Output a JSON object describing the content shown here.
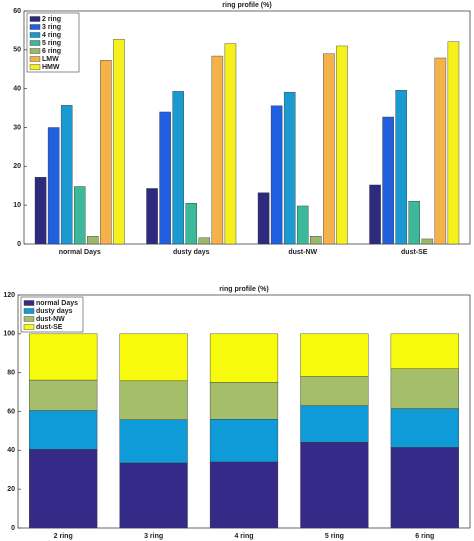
{
  "chart_data": [
    {
      "type": "bar",
      "title": "ring profile (%)",
      "categories": [
        "normal Days",
        "dusty days",
        "dust-NW",
        "dust-SE"
      ],
      "series": [
        {
          "name": "2 ring",
          "color": "#2e2a7e",
          "values": [
            17.2,
            14.3,
            13.2,
            15.2
          ]
        },
        {
          "name": "3 ring",
          "color": "#1f5fe0",
          "values": [
            30,
            34,
            35.6,
            32.7
          ]
        },
        {
          "name": "4 ring",
          "color": "#1a9ad0",
          "values": [
            35.7,
            39.3,
            39.1,
            39.6
          ]
        },
        {
          "name": "5 ring",
          "color": "#3cb89a",
          "values": [
            14.8,
            10.5,
            9.8,
            11
          ]
        },
        {
          "name": "6 ring",
          "color": "#9ab96a",
          "values": [
            2,
            1.6,
            2,
            1.3
          ]
        },
        {
          "name": "LMW",
          "color": "#f5b24a",
          "values": [
            47.3,
            48.4,
            49,
            47.9
          ]
        },
        {
          "name": "HMW",
          "color": "#f5f01e",
          "values": [
            52.7,
            51.6,
            51,
            52.1
          ]
        }
      ],
      "ylim": [
        0,
        60
      ],
      "yticks": [
        0,
        10,
        20,
        30,
        40,
        50,
        60
      ],
      "legend": "upper-left"
    },
    {
      "type": "stacked_bar",
      "title": "ring profile (%)",
      "categories": [
        "2 ring",
        "3 ring",
        "4 ring",
        "5 ring",
        "6 ring"
      ],
      "series": [
        {
          "name": "normal Days",
          "color": "#352a87",
          "values": [
            40.5,
            33.5,
            34,
            44.2,
            41.5
          ]
        },
        {
          "name": "dusty days",
          "color": "#0f9bd7",
          "values": [
            20,
            22.3,
            22,
            18.8,
            20
          ]
        },
        {
          "name": "dust-NW",
          "color": "#a5be6a",
          "values": [
            15.7,
            20,
            19,
            15,
            20.5
          ]
        },
        {
          "name": "dust-SE",
          "color": "#f8fa0d",
          "values": [
            23.8,
            24.2,
            25,
            22,
            18
          ]
        }
      ],
      "ylim": [
        0,
        120
      ],
      "yticks": [
        0,
        20,
        40,
        60,
        80,
        100,
        120
      ],
      "legend": "upper-left"
    }
  ]
}
